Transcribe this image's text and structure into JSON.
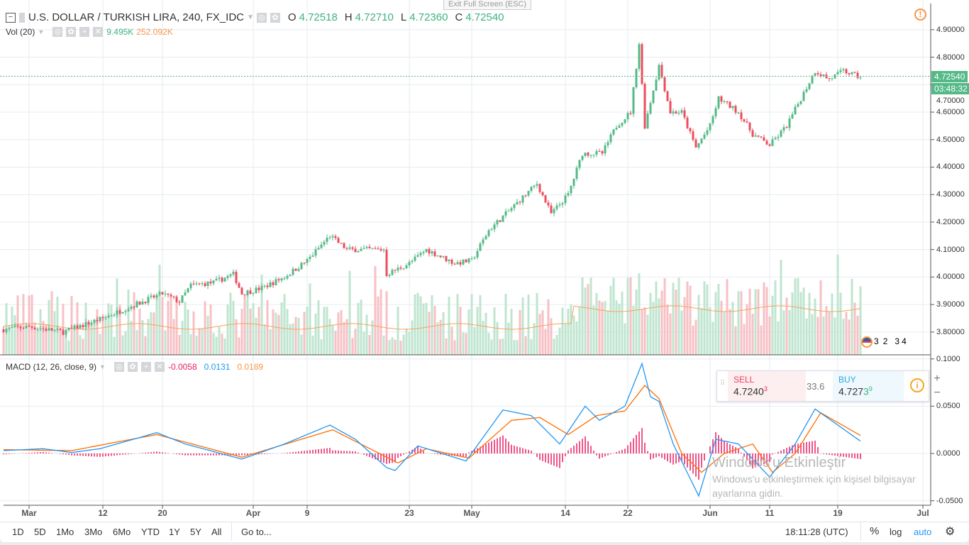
{
  "header": {
    "title": "U.S. DOLLAR / TURKISH LIRA, 240, FX_IDC",
    "o_label": "O",
    "o": "4.72518",
    "h_label": "H",
    "h": "4.72710",
    "l_label": "L",
    "l": "4.72360",
    "c_label": "C",
    "c": "4.72540"
  },
  "tooltip": "Exit Full Screen (ESC)",
  "volume": {
    "label": "Vol (20)",
    "value": "9.495K",
    "ma": "252.092K"
  },
  "macd": {
    "label": "MACD (12, 26, close, 9)",
    "hist": "-0.0058",
    "macd": "0.0131",
    "signal": "0.0189"
  },
  "price_axis": {
    "ticks": [
      "4.90000",
      "4.80000",
      "4.70000",
      "4.60000",
      "4.50000",
      "4.40000",
      "4.30000",
      "4.20000",
      "4.10000",
      "4.00000",
      "3.90000",
      "3.80000"
    ],
    "current": "4.72540",
    "countdown": "03:48:32"
  },
  "macd_axis": {
    "ticks": [
      "0.1000",
      "0.0500",
      "0.0000",
      "-0.0500"
    ]
  },
  "time_axis": [
    {
      "label": "Mar",
      "bar": 9
    },
    {
      "label": "12",
      "bar": 35
    },
    {
      "label": "20",
      "bar": 56
    },
    {
      "label": "Apr",
      "bar": 88
    },
    {
      "label": "9",
      "bar": 107
    },
    {
      "label": "23",
      "bar": 143
    },
    {
      "label": "May",
      "bar": 165
    },
    {
      "label": "14",
      "bar": 198
    },
    {
      "label": "22",
      "bar": 220
    },
    {
      "label": "Jun",
      "bar": 249
    },
    {
      "label": "11",
      "bar": 270
    },
    {
      "label": "19",
      "bar": 294
    },
    {
      "label": "Jul",
      "bar": 324
    }
  ],
  "events": [
    "3",
    "2",
    "3",
    "4"
  ],
  "trade": {
    "sell_label": "SELL",
    "sell_main": "4.7240",
    "sell_sup": "3",
    "spread": "33.6",
    "buy_label": "BUY",
    "buy_main": "4.727",
    "buy_hl": "3",
    "buy_sup": "9"
  },
  "bottom": {
    "ranges": [
      "1D",
      "5D",
      "1Mo",
      "3Mo",
      "6Mo",
      "YTD",
      "1Y",
      "5Y",
      "All"
    ],
    "goto": "Go to...",
    "time": "18:11:28 (UTC)",
    "percent": "%",
    "log": "log",
    "auto": "auto"
  },
  "watermark": {
    "title": "Windows'u Etkinleştir",
    "line1": "Windows'u etkinleştirmek için kişisel bilgisayar",
    "line2": "ayarlarına gidin."
  },
  "colors": {
    "up": "#53b987",
    "down": "#eb4d5c",
    "macd": "#2196f3",
    "signal": "#ff6d00",
    "hist": "#e91e63"
  },
  "chart_data": {
    "type": "candlestick",
    "price_ylim": [
      3.717,
      5.008
    ],
    "macd_ylim": [
      -0.0548,
      0.1043
    ],
    "bars": 302,
    "close_keypoints": [
      [
        0,
        3.81
      ],
      [
        9,
        3.82
      ],
      [
        21,
        3.8
      ],
      [
        35,
        3.85
      ],
      [
        44,
        3.89
      ],
      [
        56,
        3.94
      ],
      [
        62,
        3.91
      ],
      [
        66,
        3.97
      ],
      [
        74,
        3.98
      ],
      [
        81,
        4.01
      ],
      [
        84,
        3.94
      ],
      [
        91,
        3.96
      ],
      [
        99,
        4.0
      ],
      [
        107,
        4.06
      ],
      [
        115,
        4.15
      ],
      [
        121,
        4.1
      ],
      [
        134,
        4.1
      ],
      [
        135,
        4.01
      ],
      [
        143,
        4.05
      ],
      [
        149,
        4.1
      ],
      [
        159,
        4.05
      ],
      [
        165,
        4.06
      ],
      [
        171,
        4.17
      ],
      [
        179,
        4.25
      ],
      [
        188,
        4.34
      ],
      [
        193,
        4.23
      ],
      [
        199,
        4.3
      ],
      [
        204,
        4.45
      ],
      [
        211,
        4.45
      ],
      [
        216,
        4.55
      ],
      [
        221,
        4.6
      ],
      [
        224,
        4.85
      ],
      [
        226,
        4.55
      ],
      [
        231,
        4.77
      ],
      [
        235,
        4.6
      ],
      [
        239,
        4.6
      ],
      [
        244,
        4.47
      ],
      [
        249,
        4.55
      ],
      [
        252,
        4.65
      ],
      [
        259,
        4.6
      ],
      [
        264,
        4.52
      ],
      [
        270,
        4.48
      ],
      [
        276,
        4.55
      ],
      [
        281,
        4.65
      ],
      [
        286,
        4.75
      ],
      [
        291,
        4.72
      ],
      [
        296,
        4.75
      ],
      [
        302,
        4.7254
      ]
    ],
    "macd_keypoints": [
      [
        0,
        0.003
      ],
      [
        14,
        0.005
      ],
      [
        24,
        0.001
      ],
      [
        34,
        0.005
      ],
      [
        54,
        0.022
      ],
      [
        64,
        0.01
      ],
      [
        84,
        -0.006
      ],
      [
        99,
        0.01
      ],
      [
        115,
        0.03
      ],
      [
        124,
        0.015
      ],
      [
        135,
        -0.015
      ],
      [
        138,
        -0.018
      ],
      [
        146,
        0.008
      ],
      [
        163,
        -0.008
      ],
      [
        176,
        0.046
      ],
      [
        186,
        0.04
      ],
      [
        196,
        0.01
      ],
      [
        205,
        0.05
      ],
      [
        210,
        0.035
      ],
      [
        219,
        0.05
      ],
      [
        225,
        0.095
      ],
      [
        228,
        0.06
      ],
      [
        231,
        0.055
      ],
      [
        236,
        0.01
      ],
      [
        245,
        -0.045
      ],
      [
        251,
        0.015
      ],
      [
        259,
        0.01
      ],
      [
        270,
        -0.025
      ],
      [
        279,
        0.01
      ],
      [
        286,
        0.047
      ],
      [
        294,
        0.03
      ],
      [
        302,
        0.013
      ]
    ],
    "signal_keypoints": [
      [
        0,
        0.004
      ],
      [
        24,
        0.003
      ],
      [
        54,
        0.02
      ],
      [
        84,
        -0.004
      ],
      [
        116,
        0.025
      ],
      [
        139,
        -0.01
      ],
      [
        149,
        0.005
      ],
      [
        164,
        -0.005
      ],
      [
        179,
        0.035
      ],
      [
        189,
        0.038
      ],
      [
        199,
        0.02
      ],
      [
        209,
        0.04
      ],
      [
        219,
        0.045
      ],
      [
        226,
        0.072
      ],
      [
        231,
        0.058
      ],
      [
        239,
        0
      ],
      [
        246,
        -0.02
      ],
      [
        254,
        0
      ],
      [
        264,
        0.01
      ],
      [
        271,
        -0.02
      ],
      [
        279,
        0
      ],
      [
        288,
        0.043
      ],
      [
        302,
        0.019
      ]
    ]
  }
}
